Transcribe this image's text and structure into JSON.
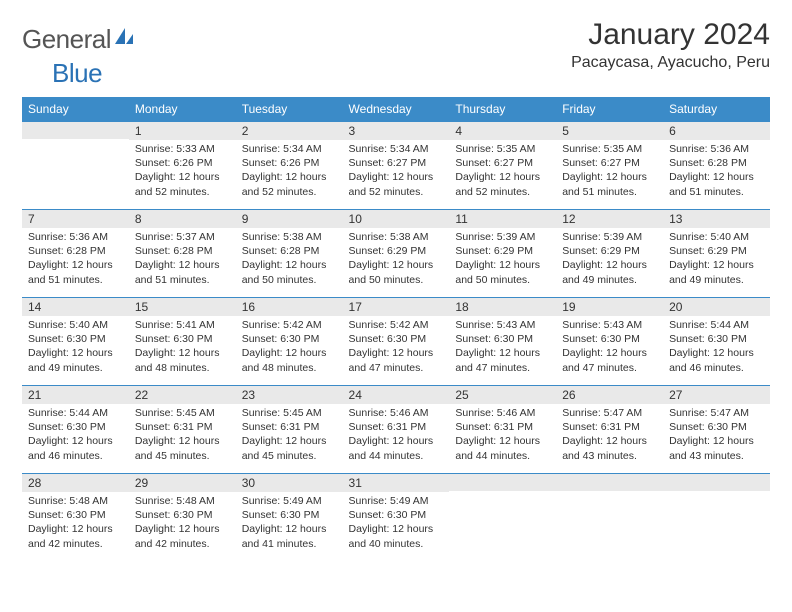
{
  "header": {
    "logo_text_1": "General",
    "logo_text_2": "Blue",
    "month_title": "January 2024",
    "location": "Pacaycasa, Ayacucho, Peru"
  },
  "colors": {
    "header_bg": "#3b8bc8",
    "header_text": "#ffffff",
    "daynum_bg": "#e9e9e9",
    "border": "#3b8bc8",
    "body_text": "#333333",
    "logo_gray": "#555555",
    "logo_blue": "#2a72b5"
  },
  "weekdays": [
    "Sunday",
    "Monday",
    "Tuesday",
    "Wednesday",
    "Thursday",
    "Friday",
    "Saturday"
  ],
  "cells": [
    {
      "n": "",
      "t": ""
    },
    {
      "n": "1",
      "t": "Sunrise: 5:33 AM\nSunset: 6:26 PM\nDaylight: 12 hours and 52 minutes."
    },
    {
      "n": "2",
      "t": "Sunrise: 5:34 AM\nSunset: 6:26 PM\nDaylight: 12 hours and 52 minutes."
    },
    {
      "n": "3",
      "t": "Sunrise: 5:34 AM\nSunset: 6:27 PM\nDaylight: 12 hours and 52 minutes."
    },
    {
      "n": "4",
      "t": "Sunrise: 5:35 AM\nSunset: 6:27 PM\nDaylight: 12 hours and 52 minutes."
    },
    {
      "n": "5",
      "t": "Sunrise: 5:35 AM\nSunset: 6:27 PM\nDaylight: 12 hours and 51 minutes."
    },
    {
      "n": "6",
      "t": "Sunrise: 5:36 AM\nSunset: 6:28 PM\nDaylight: 12 hours and 51 minutes."
    },
    {
      "n": "7",
      "t": "Sunrise: 5:36 AM\nSunset: 6:28 PM\nDaylight: 12 hours and 51 minutes."
    },
    {
      "n": "8",
      "t": "Sunrise: 5:37 AM\nSunset: 6:28 PM\nDaylight: 12 hours and 51 minutes."
    },
    {
      "n": "9",
      "t": "Sunrise: 5:38 AM\nSunset: 6:28 PM\nDaylight: 12 hours and 50 minutes."
    },
    {
      "n": "10",
      "t": "Sunrise: 5:38 AM\nSunset: 6:29 PM\nDaylight: 12 hours and 50 minutes."
    },
    {
      "n": "11",
      "t": "Sunrise: 5:39 AM\nSunset: 6:29 PM\nDaylight: 12 hours and 50 minutes."
    },
    {
      "n": "12",
      "t": "Sunrise: 5:39 AM\nSunset: 6:29 PM\nDaylight: 12 hours and 49 minutes."
    },
    {
      "n": "13",
      "t": "Sunrise: 5:40 AM\nSunset: 6:29 PM\nDaylight: 12 hours and 49 minutes."
    },
    {
      "n": "14",
      "t": "Sunrise: 5:40 AM\nSunset: 6:30 PM\nDaylight: 12 hours and 49 minutes."
    },
    {
      "n": "15",
      "t": "Sunrise: 5:41 AM\nSunset: 6:30 PM\nDaylight: 12 hours and 48 minutes."
    },
    {
      "n": "16",
      "t": "Sunrise: 5:42 AM\nSunset: 6:30 PM\nDaylight: 12 hours and 48 minutes."
    },
    {
      "n": "17",
      "t": "Sunrise: 5:42 AM\nSunset: 6:30 PM\nDaylight: 12 hours and 47 minutes."
    },
    {
      "n": "18",
      "t": "Sunrise: 5:43 AM\nSunset: 6:30 PM\nDaylight: 12 hours and 47 minutes."
    },
    {
      "n": "19",
      "t": "Sunrise: 5:43 AM\nSunset: 6:30 PM\nDaylight: 12 hours and 47 minutes."
    },
    {
      "n": "20",
      "t": "Sunrise: 5:44 AM\nSunset: 6:30 PM\nDaylight: 12 hours and 46 minutes."
    },
    {
      "n": "21",
      "t": "Sunrise: 5:44 AM\nSunset: 6:30 PM\nDaylight: 12 hours and 46 minutes."
    },
    {
      "n": "22",
      "t": "Sunrise: 5:45 AM\nSunset: 6:31 PM\nDaylight: 12 hours and 45 minutes."
    },
    {
      "n": "23",
      "t": "Sunrise: 5:45 AM\nSunset: 6:31 PM\nDaylight: 12 hours and 45 minutes."
    },
    {
      "n": "24",
      "t": "Sunrise: 5:46 AM\nSunset: 6:31 PM\nDaylight: 12 hours and 44 minutes."
    },
    {
      "n": "25",
      "t": "Sunrise: 5:46 AM\nSunset: 6:31 PM\nDaylight: 12 hours and 44 minutes."
    },
    {
      "n": "26",
      "t": "Sunrise: 5:47 AM\nSunset: 6:31 PM\nDaylight: 12 hours and 43 minutes."
    },
    {
      "n": "27",
      "t": "Sunrise: 5:47 AM\nSunset: 6:30 PM\nDaylight: 12 hours and 43 minutes."
    },
    {
      "n": "28",
      "t": "Sunrise: 5:48 AM\nSunset: 6:30 PM\nDaylight: 12 hours and 42 minutes."
    },
    {
      "n": "29",
      "t": "Sunrise: 5:48 AM\nSunset: 6:30 PM\nDaylight: 12 hours and 42 minutes."
    },
    {
      "n": "30",
      "t": "Sunrise: 5:49 AM\nSunset: 6:30 PM\nDaylight: 12 hours and 41 minutes."
    },
    {
      "n": "31",
      "t": "Sunrise: 5:49 AM\nSunset: 6:30 PM\nDaylight: 12 hours and 40 minutes."
    },
    {
      "n": "",
      "t": ""
    },
    {
      "n": "",
      "t": ""
    },
    {
      "n": "",
      "t": ""
    }
  ]
}
